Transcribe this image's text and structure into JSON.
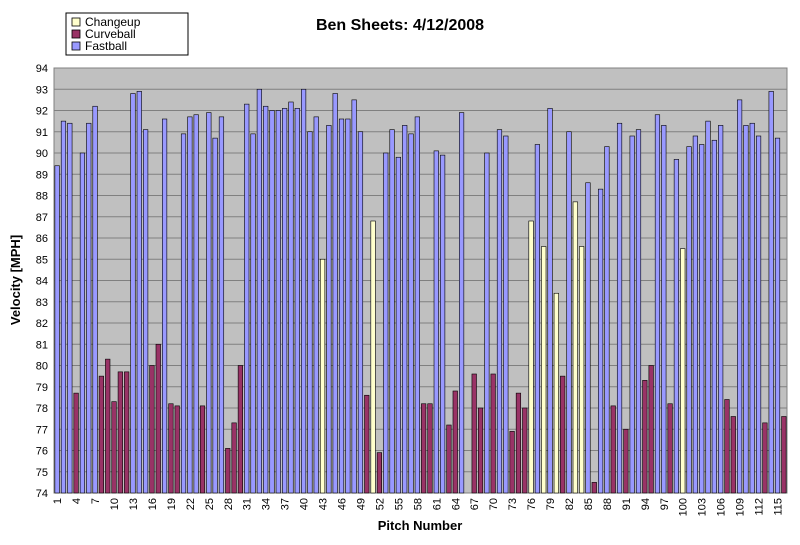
{
  "chart_data": {
    "type": "bar",
    "title": "Ben Sheets: 4/12/2008",
    "xlabel": "Pitch Number",
    "ylabel": "Velocity [MPH]",
    "ylim": [
      74,
      94
    ],
    "y_ticks": [
      74,
      75,
      76,
      77,
      78,
      79,
      80,
      81,
      82,
      83,
      84,
      85,
      86,
      87,
      88,
      89,
      90,
      91,
      92,
      93,
      94
    ],
    "x_tick_labels": [
      "1",
      "4",
      "7",
      "10",
      "13",
      "16",
      "19",
      "22",
      "25",
      "28",
      "31",
      "34",
      "37",
      "40",
      "43",
      "46",
      "49",
      "52",
      "55",
      "58",
      "61",
      "64",
      "67",
      "70",
      "73",
      "76",
      "79",
      "82",
      "85",
      "88",
      "91",
      "94",
      "97",
      "100",
      "103",
      "106",
      "109",
      "112",
      "115"
    ],
    "grid": "horizontal",
    "legend_position": "top-left",
    "colors": {
      "Changeup": "#ffffcc",
      "Curveball": "#993366",
      "Fastball": "#9999ff",
      "plot_bg": "#c0c0c0"
    },
    "series": [
      {
        "name": "Changeup",
        "pitches": [
          43,
          51,
          76,
          78,
          80,
          83,
          84,
          100
        ],
        "values": [
          85.0,
          86.8,
          86.8,
          85.6,
          83.4,
          87.7,
          85.6,
          85.5
        ]
      },
      {
        "name": "Curveball",
        "pitches": [
          4,
          8,
          9,
          10,
          11,
          12,
          16,
          17,
          19,
          20,
          24,
          28,
          29,
          30,
          50,
          52,
          59,
          60,
          63,
          64,
          67,
          68,
          70,
          73,
          74,
          75,
          81,
          86,
          89,
          91,
          94,
          95,
          98,
          107,
          108,
          113,
          116
        ],
        "values": [
          78.7,
          79.5,
          80.3,
          78.3,
          79.7,
          79.7,
          80.0,
          81.0,
          78.2,
          78.1,
          78.1,
          76.1,
          77.3,
          80.0,
          78.6,
          75.9,
          78.2,
          78.2,
          77.2,
          78.8,
          79.6,
          78.0,
          79.6,
          76.9,
          78.7,
          78.0,
          79.5,
          74.5,
          78.1,
          77.0,
          79.3,
          80.0,
          78.2,
          78.4,
          77.6,
          77.3,
          77.6
        ]
      },
      {
        "name": "Fastball",
        "pitches": [
          1,
          2,
          3,
          5,
          6,
          7,
          13,
          14,
          15,
          18,
          21,
          22,
          23,
          25,
          26,
          27,
          31,
          32,
          33,
          34,
          35,
          36,
          37,
          38,
          39,
          40,
          41,
          42,
          44,
          45,
          46,
          47,
          48,
          49,
          53,
          54,
          55,
          56,
          57,
          58,
          61,
          62,
          65,
          69,
          71,
          72,
          77,
          79,
          82,
          85,
          87,
          88,
          90,
          92,
          93,
          96,
          97,
          99,
          101,
          102,
          103,
          104,
          105,
          106,
          109,
          110,
          111,
          112,
          114,
          115
        ],
        "values": [
          89.4,
          91.5,
          91.4,
          90.0,
          91.4,
          92.2,
          92.8,
          92.9,
          91.1,
          91.6,
          90.9,
          91.7,
          91.8,
          91.9,
          90.7,
          91.7,
          92.3,
          90.9,
          93.0,
          92.2,
          92.0,
          92.0,
          92.1,
          92.4,
          92.1,
          93.0,
          91.0,
          91.7,
          91.3,
          92.8,
          91.6,
          91.6,
          92.5,
          91.0,
          90.0,
          91.1,
          89.8,
          91.3,
          90.9,
          91.7,
          90.1,
          89.9,
          91.9,
          90.0,
          91.1,
          90.8,
          90.4,
          92.1,
          91.0,
          88.6,
          88.3,
          90.3,
          91.4,
          90.8,
          91.1,
          91.8,
          91.3,
          89.7,
          90.3,
          90.8,
          90.4,
          91.5,
          90.6,
          91.3,
          92.5,
          91.3,
          91.4,
          90.8,
          92.9,
          90.7
        ]
      }
    ]
  }
}
